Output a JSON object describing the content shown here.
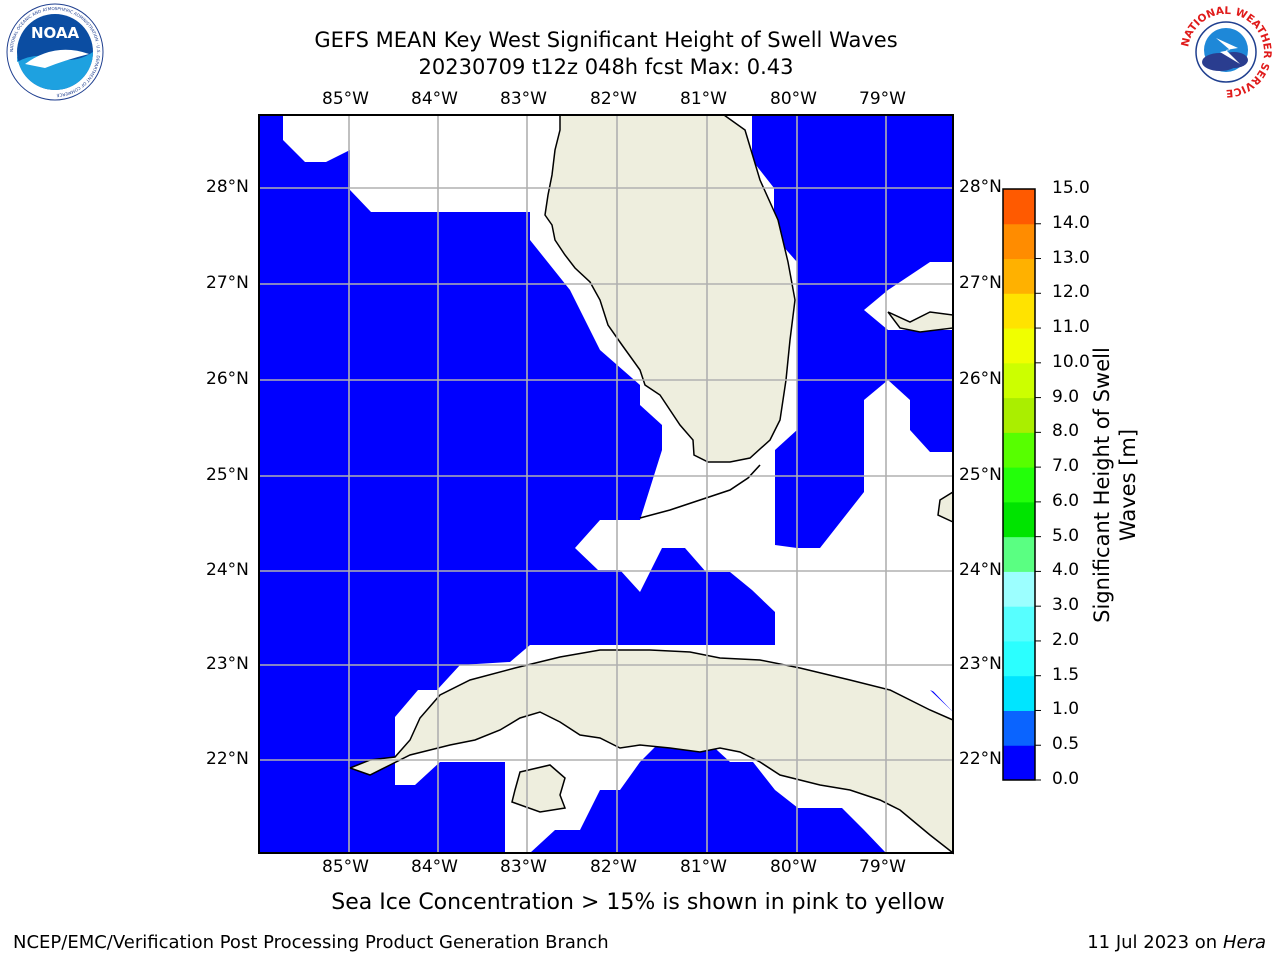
{
  "title_line1": "GEFS MEAN Key West Significant Height of Swell Waves",
  "title_line2": "20230709 t12z 048h fcst   Max: 0.43",
  "lon_ticks": [
    "85°W",
    "84°W",
    "83°W",
    "82°W",
    "81°W",
    "80°W",
    "79°W"
  ],
  "lat_ticks": [
    "28°N",
    "27°N",
    "26°N",
    "25°N",
    "24°N",
    "23°N",
    "22°N"
  ],
  "colorbar": {
    "label": "Significant Height of Swell Waves [m]",
    "ticks": [
      "0.0",
      "0.5",
      "1.0",
      "1.5",
      "2.0",
      "3.0",
      "4.0",
      "5.0",
      "6.0",
      "7.0",
      "8.0",
      "9.0",
      "10.0",
      "11.0",
      "12.0",
      "13.0",
      "14.0",
      "15.0"
    ],
    "colors": [
      "#0000ff",
      "#0a64ff",
      "#00e5ff",
      "#2bffff",
      "#57ffff",
      "#9cffff",
      "#5aff82",
      "#00e400",
      "#23ff0a",
      "#57ff00",
      "#aaee00",
      "#ccff00",
      "#f0ff00",
      "#ffe300",
      "#ffb100",
      "#ff8c00",
      "#ff5a00",
      "#ff2800",
      "#ff0000"
    ]
  },
  "note": "Sea Ice Concentration > 15% is shown in pink to yellow",
  "footer_left": "NCEP/EMC/Verification Post Processing Product Generation Branch",
  "footer_right_date": "11 Jul 2023 on ",
  "footer_right_host": "Hera",
  "logos": {
    "noaa_text": "NOAA",
    "noaa_ring": "NATIONAL OCEANIC AND ATMOSPHERIC ADMINISTRATION · U.S. DEPARTMENT OF COMMERCE",
    "nws_ring": "NATIONAL WEATHER SERVICE"
  },
  "map_colors": {
    "sea": "#0000ff",
    "land": "#eeeede",
    "grid": "#b0b0b0"
  }
}
